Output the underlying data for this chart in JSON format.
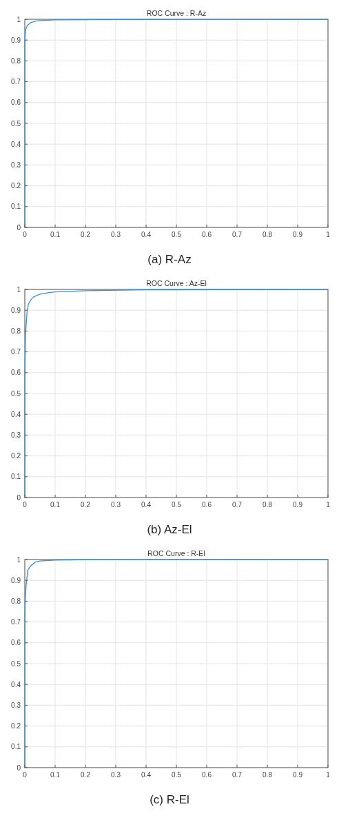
{
  "chart_data": [
    {
      "type": "line",
      "title": "ROC Curve : R-Az",
      "annotations": [
        "(a) R-Az"
      ],
      "grid": true,
      "xlim": [
        0,
        1
      ],
      "ylim": [
        0,
        1
      ],
      "xticks": [
        0,
        0.1,
        0.2,
        0.3,
        0.4,
        0.5,
        0.6,
        0.7,
        0.8,
        0.9,
        1
      ],
      "yticks": [
        0,
        0.1,
        0.2,
        0.3,
        0.4,
        0.5,
        0.6,
        0.7,
        0.8,
        0.9,
        1
      ],
      "series": [
        {
          "color": "#3a8fd6",
          "x": [
            0,
            0,
            0.003,
            0.008,
            0.02,
            0.04,
            0.1,
            0.3,
            1
          ],
          "values": [
            0,
            0.9,
            0.95,
            0.97,
            0.985,
            0.993,
            0.997,
            0.999,
            1
          ]
        }
      ]
    },
    {
      "type": "line",
      "title": "ROC Curve : Az-El",
      "annotations": [
        "(b) Az-El"
      ],
      "grid": true,
      "xlim": [
        0,
        1
      ],
      "ylim": [
        0,
        1
      ],
      "xticks": [
        0,
        0.1,
        0.2,
        0.3,
        0.4,
        0.5,
        0.6,
        0.7,
        0.8,
        0.9,
        1
      ],
      "yticks": [
        0,
        0.1,
        0.2,
        0.3,
        0.4,
        0.5,
        0.6,
        0.7,
        0.8,
        0.9,
        1
      ],
      "series": [
        {
          "color": "#3a8fd6",
          "x": [
            0,
            0,
            0.003,
            0.008,
            0.012,
            0.02,
            0.03,
            0.05,
            0.08,
            0.1,
            0.2,
            0.4,
            1
          ],
          "values": [
            0,
            0.6,
            0.8,
            0.9,
            0.93,
            0.95,
            0.965,
            0.977,
            0.985,
            0.988,
            0.994,
            0.998,
            1
          ]
        }
      ]
    },
    {
      "type": "line",
      "title": "ROC Curve : R-El",
      "annotations": [
        "(c) R-El"
      ],
      "grid": true,
      "xlim": [
        0,
        1
      ],
      "ylim": [
        0,
        1
      ],
      "xticks": [
        0,
        0.1,
        0.2,
        0.3,
        0.4,
        0.5,
        0.6,
        0.7,
        0.8,
        0.9,
        1
      ],
      "yticks": [
        0,
        0.1,
        0.2,
        0.3,
        0.4,
        0.5,
        0.6,
        0.7,
        0.8,
        0.9,
        1
      ],
      "series": [
        {
          "color": "#3a8fd6",
          "x": [
            0,
            0,
            0.004,
            0.01,
            0.02,
            0.035,
            0.05,
            0.1,
            0.2,
            1
          ],
          "values": [
            0,
            0.75,
            0.87,
            0.95,
            0.97,
            0.988,
            0.993,
            0.997,
            0.999,
            1
          ]
        }
      ]
    }
  ]
}
